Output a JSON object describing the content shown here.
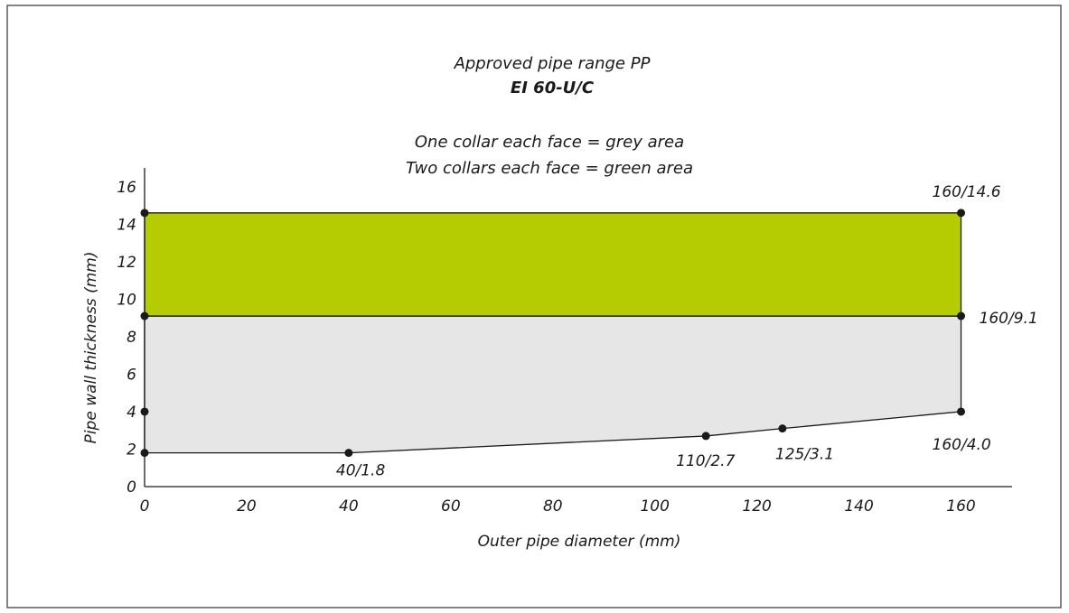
{
  "chart_data": {
    "type": "area",
    "title": "Approved pipe range PP",
    "subtitle": "EI 60-U/C",
    "legend_lines": [
      "One collar each face = grey area",
      "Two collars each face = green area"
    ],
    "xlabel": "Outer pipe diameter (mm)",
    "ylabel": "Pipe wall thickness (mm)",
    "xlim": [
      0,
      170
    ],
    "ylim": [
      0,
      17
    ],
    "x_ticks": [
      "0",
      "20",
      "40",
      "60",
      "80",
      "100",
      "120",
      "140",
      "160"
    ],
    "y_ticks": [
      "0",
      "2",
      "4",
      "6",
      "8",
      "10",
      "12",
      "14",
      "16"
    ],
    "x_tick_values": [
      0,
      20,
      40,
      60,
      80,
      100,
      120,
      140,
      160
    ],
    "y_tick_values": [
      0,
      2,
      4,
      6,
      8,
      10,
      12,
      14,
      16
    ],
    "grey_area": [
      [
        0,
        1.8
      ],
      [
        40,
        1.8
      ],
      [
        110,
        2.7
      ],
      [
        125,
        3.1
      ],
      [
        160,
        4.0
      ],
      [
        160,
        9.1
      ],
      [
        0,
        9.1
      ]
    ],
    "green_area": [
      [
        0,
        9.1
      ],
      [
        160,
        9.1
      ],
      [
        160,
        14.6
      ],
      [
        0,
        14.6
      ]
    ],
    "points": [
      {
        "x": 0,
        "y": 1.8,
        "label": ""
      },
      {
        "x": 0,
        "y": 4.0,
        "label": ""
      },
      {
        "x": 0,
        "y": 9.1,
        "label": ""
      },
      {
        "x": 0,
        "y": 14.6,
        "label": ""
      },
      {
        "x": 40,
        "y": 1.8,
        "label": "40/1.8"
      },
      {
        "x": 110,
        "y": 2.7,
        "label": "110/2.7"
      },
      {
        "x": 125,
        "y": 3.1,
        "label": "125/3.1"
      },
      {
        "x": 160,
        "y": 4.0,
        "label": "160/4.0"
      },
      {
        "x": 160,
        "y": 9.1,
        "label": "160/9.1"
      },
      {
        "x": 160,
        "y": 14.6,
        "label": "160/14.6"
      }
    ],
    "colors": {
      "grey": "#e6e6e6",
      "green": "#b5cc02",
      "outline": "#1a1a1a",
      "frame": "#333333"
    }
  }
}
